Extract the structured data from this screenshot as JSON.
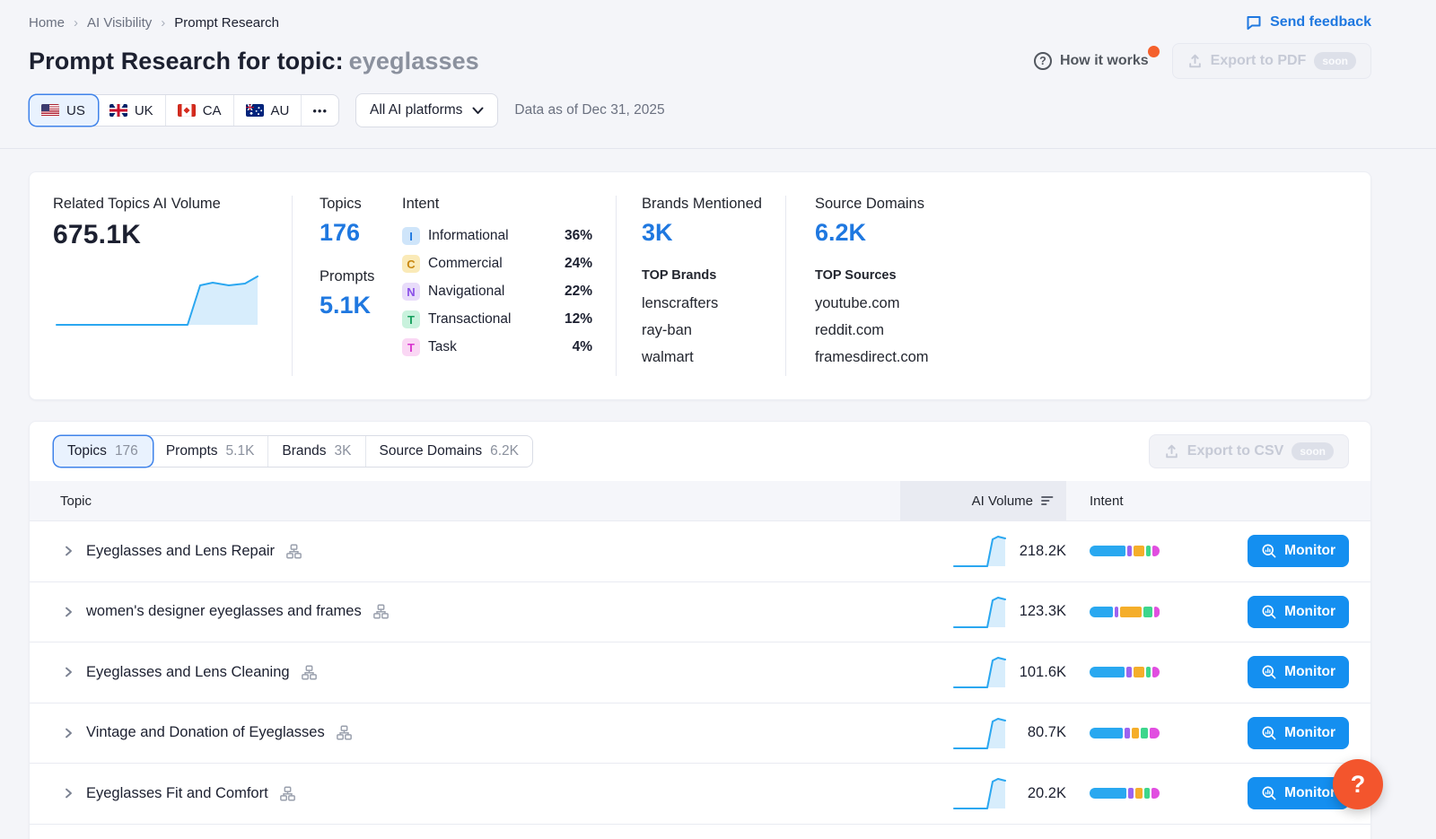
{
  "breadcrumb": {
    "items": [
      "Home",
      "AI Visibility",
      "Prompt Research"
    ],
    "separator": "›"
  },
  "top": {
    "send_feedback": "Send feedback"
  },
  "header": {
    "title_prefix": "Prompt Research for topic:",
    "topic": "eyeglasses",
    "how_it_works": "How it works",
    "export_pdf": "Export to PDF",
    "soon": "soon"
  },
  "filters": {
    "countries": [
      {
        "code": "us",
        "label": "US",
        "selected": true
      },
      {
        "code": "uk",
        "label": "UK",
        "selected": false
      },
      {
        "code": "ca",
        "label": "CA",
        "selected": false
      },
      {
        "code": "au",
        "label": "AU",
        "selected": false
      }
    ],
    "more_label": "•••",
    "platform": "All AI platforms",
    "data_as_of": "Data as of Dec 31, 2025"
  },
  "stats": {
    "volume": {
      "label": "Related Topics AI Volume",
      "value": "675.1K"
    },
    "topics": {
      "label": "Topics",
      "value": "176"
    },
    "prompts": {
      "label": "Prompts",
      "value": "5.1K"
    },
    "intent": {
      "label": "Intent",
      "items": [
        {
          "letter": "I",
          "name": "Informational",
          "pct": "36%",
          "badge_bg": "#cfe5fa",
          "badge_color": "#1f78e0"
        },
        {
          "letter": "C",
          "name": "Commercial",
          "pct": "24%",
          "badge_bg": "#faeab8",
          "badge_color": "#c8860e"
        },
        {
          "letter": "N",
          "name": "Navigational",
          "pct": "22%",
          "badge_bg": "#e8dcfa",
          "badge_color": "#8a4fe8"
        },
        {
          "letter": "T",
          "name": "Transactional",
          "pct": "12%",
          "badge_bg": "#c9f2dd",
          "badge_color": "#17a05e"
        },
        {
          "letter": "T",
          "name": "Task",
          "pct": "4%",
          "badge_bg": "#fad7f4",
          "badge_color": "#d936cf"
        }
      ]
    },
    "brands": {
      "label": "Brands Mentioned",
      "value": "3K",
      "top_label": "TOP Brands",
      "items": [
        "lenscrafters",
        "ray-ban",
        "walmart"
      ]
    },
    "sources": {
      "label": "Source Domains",
      "value": "6.2K",
      "top_label": "TOP Sources",
      "items": [
        "youtube.com",
        "reddit.com",
        "framesdirect.com"
      ]
    }
  },
  "tabs": [
    {
      "label": "Topics",
      "count": "176",
      "active": true
    },
    {
      "label": "Prompts",
      "count": "5.1K",
      "active": false
    },
    {
      "label": "Brands",
      "count": "3K",
      "active": false
    },
    {
      "label": "Source Domains",
      "count": "6.2K",
      "active": false
    }
  ],
  "export_csv": {
    "label": "Export to CSV",
    "soon": "soon"
  },
  "table": {
    "columns": {
      "topic": "Topic",
      "ai_volume": "AI Volume",
      "intent": "Intent"
    },
    "monitor_label": "Monitor",
    "rows": [
      {
        "topic": "Eyeglasses and Lens Repair",
        "ai_volume": "218.2K",
        "intent_segments": [
          52,
          7,
          16,
          7,
          10
        ]
      },
      {
        "topic": "women's designer eyeglasses and frames",
        "ai_volume": "123.3K",
        "intent_segments": [
          33,
          6,
          30,
          13,
          8
        ]
      },
      {
        "topic": "Eyeglasses and Lens Cleaning",
        "ai_volume": "101.6K",
        "intent_segments": [
          50,
          7,
          15,
          7,
          10
        ]
      },
      {
        "topic": "Vintage and Donation of Eyeglasses",
        "ai_volume": "80.7K",
        "intent_segments": [
          46,
          7,
          11,
          9,
          14
        ]
      },
      {
        "topic": "Eyeglasses Fit and Comfort",
        "ai_volume": "20.2K",
        "intent_segments": [
          50,
          7,
          10,
          7,
          11
        ]
      }
    ]
  },
  "colors": {
    "accent_blue": "#1f78e0",
    "monitor_blue": "#148ff0",
    "intent_palette": [
      "#29a8f0",
      "#9b63f0",
      "#f5ae2a",
      "#3dd68c",
      "#e14ee0"
    ],
    "sparkline_line": "#2ba7f0",
    "sparkline_fill": "#d7edfc",
    "fab_orange": "#f3552d",
    "notification_orange": "#f4602c"
  },
  "fab": {
    "label": "?"
  }
}
